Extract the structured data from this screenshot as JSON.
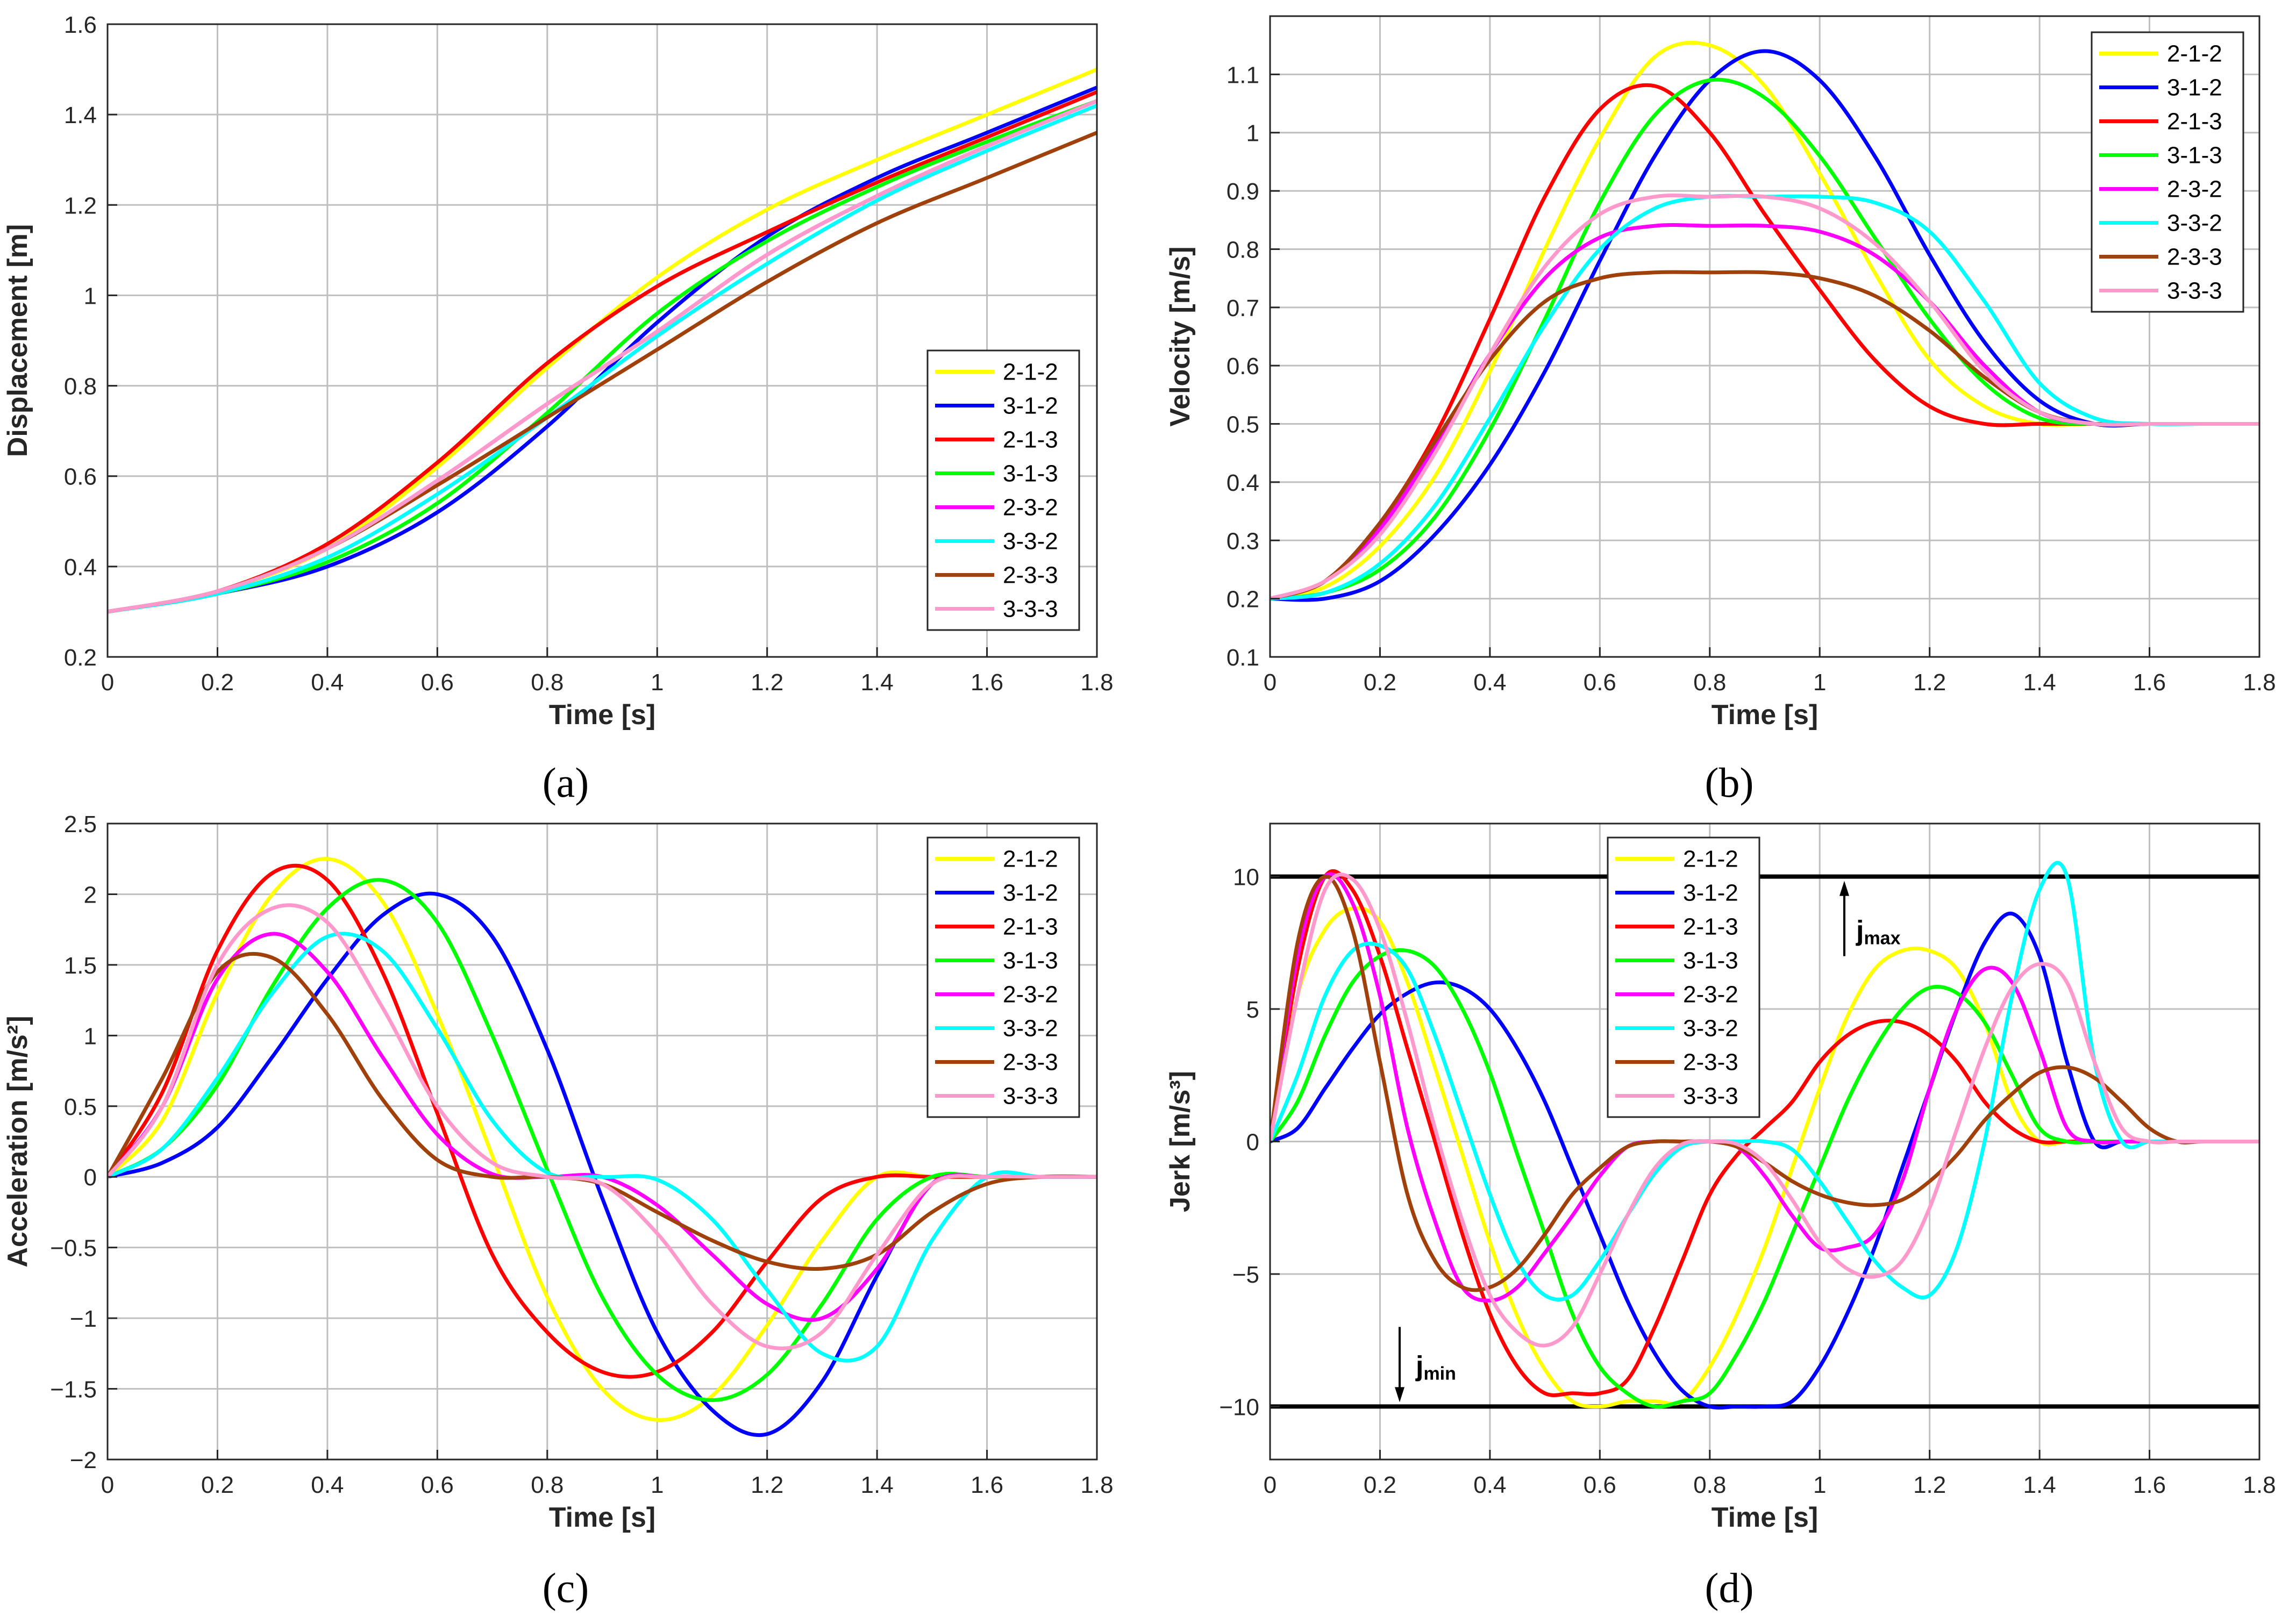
{
  "series_styles": [
    {
      "name": "2-1-2",
      "color": "#ffff00"
    },
    {
      "name": "3-1-2",
      "color": "#0000ff"
    },
    {
      "name": "2-1-3",
      "color": "#ff0000"
    },
    {
      "name": "3-1-3",
      "color": "#00ff00"
    },
    {
      "name": "2-3-2",
      "color": "#ff00ff"
    },
    {
      "name": "3-3-2",
      "color": "#00ffff"
    },
    {
      "name": "2-3-3",
      "color": "#a0400a"
    },
    {
      "name": "3-3-3",
      "color": "#ff99cc"
    }
  ],
  "captions": {
    "a": "(a)",
    "b": "(b)",
    "c": "(c)",
    "d": "(d)"
  },
  "chart_data": [
    {
      "id": "a",
      "type": "line",
      "title": "",
      "xlabel": "Time [s]",
      "ylabel": "Displacement [m]",
      "xlim": [
        0,
        1.8
      ],
      "ylim": [
        0.2,
        1.6
      ],
      "xticks": [
        0,
        0.2,
        0.4,
        0.6,
        0.8,
        1,
        1.2,
        1.4,
        1.6,
        1.8
      ],
      "xticklabels": [
        "0",
        "0.2",
        "0.4",
        "0.6",
        "0.8",
        "1",
        "1.2",
        "1.4",
        "1.6",
        "1.8"
      ],
      "yticks": [
        0.2,
        0.4,
        0.6,
        0.8,
        1,
        1.2,
        1.4,
        1.6
      ],
      "yticklabels": [
        "0.2",
        "0.4",
        "0.6",
        "0.8",
        "1",
        "1.2",
        "1.4",
        "1.6"
      ],
      "grid": true,
      "legend": "right-center",
      "x": [
        0,
        0.2,
        0.4,
        0.6,
        0.8,
        1,
        1.2,
        1.4,
        1.6,
        1.8
      ],
      "series": [
        {
          "name": "2-1-2",
          "values": [
            0.3,
            0.345,
            0.44,
            0.62,
            0.84,
            1.04,
            1.19,
            1.3,
            1.4,
            1.5
          ]
        },
        {
          "name": "3-1-2",
          "values": [
            0.3,
            0.34,
            0.4,
            0.52,
            0.71,
            0.94,
            1.13,
            1.26,
            1.36,
            1.46
          ]
        },
        {
          "name": "2-1-3",
          "values": [
            0.3,
            0.345,
            0.45,
            0.63,
            0.85,
            1.02,
            1.14,
            1.25,
            1.35,
            1.45
          ]
        },
        {
          "name": "3-1-3",
          "values": [
            0.3,
            0.34,
            0.41,
            0.54,
            0.74,
            0.96,
            1.12,
            1.24,
            1.34,
            1.43
          ]
        },
        {
          "name": "2-3-2",
          "values": [
            0.3,
            0.345,
            0.44,
            0.59,
            0.76,
            0.92,
            1.09,
            1.22,
            1.33,
            1.43
          ]
        },
        {
          "name": "3-3-2",
          "values": [
            0.3,
            0.34,
            0.42,
            0.56,
            0.73,
            0.91,
            1.07,
            1.21,
            1.32,
            1.42
          ]
        },
        {
          "name": "2-3-3",
          "values": [
            0.3,
            0.345,
            0.44,
            0.58,
            0.73,
            0.88,
            1.03,
            1.16,
            1.26,
            1.36
          ]
        },
        {
          "name": "3-3-3",
          "values": [
            0.3,
            0.345,
            0.44,
            0.59,
            0.76,
            0.92,
            1.09,
            1.22,
            1.33,
            1.43
          ]
        }
      ]
    },
    {
      "id": "b",
      "type": "line",
      "title": "",
      "xlabel": "Time [s]",
      "ylabel": "Velocity [m/s]",
      "xlim": [
        0,
        1.8
      ],
      "ylim": [
        0.1,
        1.2
      ],
      "xticks": [
        0,
        0.2,
        0.4,
        0.6,
        0.8,
        1,
        1.2,
        1.4,
        1.6,
        1.8
      ],
      "xticklabels": [
        "0",
        "0.2",
        "0.4",
        "0.6",
        "0.8",
        "1",
        "1.2",
        "1.4",
        "1.6",
        "1.8"
      ],
      "yticks": [
        0.1,
        0.2,
        0.3,
        0.4,
        0.5,
        0.6,
        0.7,
        0.8,
        0.9,
        1,
        1.1
      ],
      "yticklabels": [
        "0.1",
        "0.2",
        "0.3",
        "0.4",
        "0.5",
        "0.6",
        "0.7",
        "0.8",
        "0.9",
        "1",
        "1.1"
      ],
      "grid": true,
      "legend": "top-right",
      "x": [
        0,
        0.1,
        0.2,
        0.3,
        0.4,
        0.5,
        0.6,
        0.7,
        0.8,
        0.9,
        1,
        1.1,
        1.2,
        1.3,
        1.4,
        1.5,
        1.6,
        1.7,
        1.8
      ],
      "series": [
        {
          "name": "2-1-2",
          "values": [
            0.2,
            0.22,
            0.29,
            0.41,
            0.59,
            0.8,
            0.99,
            1.13,
            1.15,
            1.08,
            0.93,
            0.76,
            0.61,
            0.53,
            0.5,
            0.5,
            0.5,
            0.5,
            0.5
          ]
        },
        {
          "name": "3-1-2",
          "values": [
            0.2,
            0.2,
            0.23,
            0.31,
            0.43,
            0.59,
            0.78,
            0.96,
            1.09,
            1.14,
            1.09,
            0.96,
            0.79,
            0.64,
            0.54,
            0.5,
            0.5,
            0.5,
            0.5
          ]
        },
        {
          "name": "2-1-3",
          "values": [
            0.2,
            0.23,
            0.33,
            0.48,
            0.68,
            0.89,
            1.04,
            1.08,
            1.0,
            0.86,
            0.73,
            0.61,
            0.53,
            0.5,
            0.5,
            0.5,
            0.5,
            0.5,
            0.5
          ]
        },
        {
          "name": "3-1-3",
          "values": [
            0.2,
            0.21,
            0.25,
            0.34,
            0.49,
            0.68,
            0.88,
            1.03,
            1.09,
            1.06,
            0.96,
            0.82,
            0.68,
            0.57,
            0.51,
            0.5,
            0.5,
            0.5,
            0.5
          ]
        },
        {
          "name": "2-3-2",
          "values": [
            0.2,
            0.23,
            0.32,
            0.46,
            0.62,
            0.75,
            0.82,
            0.84,
            0.84,
            0.84,
            0.83,
            0.79,
            0.71,
            0.6,
            0.52,
            0.5,
            0.5,
            0.5,
            0.5
          ]
        },
        {
          "name": "3-3-2",
          "values": [
            0.2,
            0.21,
            0.26,
            0.36,
            0.51,
            0.67,
            0.8,
            0.87,
            0.89,
            0.89,
            0.89,
            0.88,
            0.83,
            0.71,
            0.57,
            0.51,
            0.5,
            0.5,
            0.5
          ]
        },
        {
          "name": "2-3-3",
          "values": [
            0.2,
            0.23,
            0.33,
            0.47,
            0.61,
            0.71,
            0.75,
            0.76,
            0.76,
            0.76,
            0.75,
            0.72,
            0.66,
            0.58,
            0.52,
            0.5,
            0.5,
            0.5,
            0.5
          ]
        },
        {
          "name": "3-3-3",
          "values": [
            0.2,
            0.23,
            0.31,
            0.45,
            0.62,
            0.77,
            0.86,
            0.89,
            0.89,
            0.89,
            0.87,
            0.81,
            0.71,
            0.59,
            0.52,
            0.5,
            0.5,
            0.5,
            0.5
          ]
        }
      ]
    },
    {
      "id": "c",
      "type": "line",
      "title": "",
      "xlabel": "Time [s]",
      "ylabel": "Acceleration [m/s²]",
      "xlim": [
        0,
        1.8
      ],
      "ylim": [
        -2,
        2.5
      ],
      "xticks": [
        0,
        0.2,
        0.4,
        0.6,
        0.8,
        1,
        1.2,
        1.4,
        1.6,
        1.8
      ],
      "xticklabels": [
        "0",
        "0.2",
        "0.4",
        "0.6",
        "0.8",
        "1",
        "1.2",
        "1.4",
        "1.6",
        "1.8"
      ],
      "yticks": [
        -2,
        -1.5,
        -1,
        -0.5,
        0,
        0.5,
        1,
        1.5,
        2,
        2.5
      ],
      "yticklabels": [
        "−2",
        "−1.5",
        "−1",
        "−0.5",
        "0",
        "0.5",
        "1",
        "1.5",
        "2",
        "2.5"
      ],
      "grid": true,
      "legend": "top-right",
      "x": [
        0,
        0.1,
        0.2,
        0.3,
        0.4,
        0.5,
        0.6,
        0.7,
        0.8,
        0.9,
        1,
        1.1,
        1.2,
        1.3,
        1.4,
        1.5,
        1.6,
        1.7,
        1.8
      ],
      "series": [
        {
          "name": "2-1-2",
          "values": [
            0,
            0.4,
            1.3,
            2.0,
            2.25,
            1.95,
            1.15,
            0.15,
            -0.85,
            -1.5,
            -1.72,
            -1.55,
            -1.05,
            -0.45,
            0,
            0,
            0,
            0,
            0
          ]
        },
        {
          "name": "3-1-2",
          "values": [
            0,
            0.1,
            0.35,
            0.85,
            1.4,
            1.85,
            2.0,
            1.7,
            0.9,
            -0.15,
            -1.1,
            -1.65,
            -1.82,
            -1.45,
            -0.7,
            -0.05,
            0,
            0,
            0
          ]
        },
        {
          "name": "2-1-3",
          "values": [
            0,
            0.6,
            1.6,
            2.15,
            2.1,
            1.45,
            0.45,
            -0.55,
            -1.1,
            -1.38,
            -1.38,
            -1.1,
            -0.6,
            -0.15,
            0,
            0,
            0,
            0,
            0
          ]
        },
        {
          "name": "3-1-3",
          "values": [
            0,
            0.2,
            0.65,
            1.35,
            1.9,
            2.1,
            1.8,
            1.0,
            0.05,
            -0.85,
            -1.4,
            -1.58,
            -1.4,
            -0.9,
            -0.3,
            0,
            0,
            0,
            0
          ]
        },
        {
          "name": "2-3-2",
          "values": [
            0,
            0.5,
            1.4,
            1.72,
            1.45,
            0.85,
            0.3,
            0.02,
            0,
            0,
            -0.2,
            -0.55,
            -0.9,
            -1.0,
            -0.65,
            -0.05,
            0,
            0,
            0
          ]
        },
        {
          "name": "3-3-2",
          "values": [
            0,
            0.2,
            0.7,
            1.3,
            1.7,
            1.6,
            1.05,
            0.4,
            0.03,
            0,
            -0.02,
            -0.3,
            -0.8,
            -1.25,
            -1.2,
            -0.45,
            0,
            0,
            0
          ]
        },
        {
          "name": "2-3-3",
          "values": [
            0,
            0.7,
            1.45,
            1.55,
            1.15,
            0.55,
            0.12,
            0,
            0,
            -0.05,
            -0.25,
            -0.45,
            -0.6,
            -0.65,
            -0.55,
            -0.25,
            -0.05,
            0,
            0
          ]
        },
        {
          "name": "3-3-3",
          "values": [
            0,
            0.5,
            1.5,
            1.9,
            1.8,
            1.2,
            0.5,
            0.1,
            0,
            -0.05,
            -0.4,
            -0.9,
            -1.2,
            -1.1,
            -0.55,
            -0.05,
            0,
            0,
            0
          ]
        }
      ]
    },
    {
      "id": "d",
      "type": "line",
      "title": "",
      "xlabel": "Time [s]",
      "ylabel": "Jerk [m/s³]",
      "xlim": [
        0,
        1.8
      ],
      "ylim": [
        -12,
        12
      ],
      "xticks": [
        0,
        0.2,
        0.4,
        0.6,
        0.8,
        1,
        1.2,
        1.4,
        1.6,
        1.8
      ],
      "xticklabels": [
        "0",
        "0.2",
        "0.4",
        "0.6",
        "0.8",
        "1",
        "1.2",
        "1.4",
        "1.6",
        "1.8"
      ],
      "yticks": [
        -10,
        -5,
        0,
        5,
        10
      ],
      "yticklabels": [
        "−10",
        "−5",
        "0",
        "5",
        "10"
      ],
      "grid": true,
      "legend": "top-left-center",
      "limits": [
        {
          "label": "j",
          "sub": "max",
          "value": 10
        },
        {
          "label": "j",
          "sub": "min",
          "value": -10
        }
      ],
      "x": [
        0,
        0.05,
        0.1,
        0.15,
        0.2,
        0.25,
        0.3,
        0.35,
        0.4,
        0.45,
        0.5,
        0.55,
        0.6,
        0.65,
        0.7,
        0.75,
        0.8,
        0.85,
        0.9,
        0.95,
        1,
        1.05,
        1.1,
        1.15,
        1.2,
        1.25,
        1.3,
        1.35,
        1.4,
        1.45,
        1.5,
        1.55,
        1.6,
        1.65,
        1.7,
        1.8
      ],
      "series": [
        {
          "name": "2-1-2",
          "values": [
            0,
            5.5,
            8.0,
            8.8,
            8.3,
            6.0,
            2.8,
            -0.5,
            -3.8,
            -6.6,
            -8.6,
            -9.8,
            -10,
            -9.8,
            -9.8,
            -9.8,
            -8.5,
            -6.5,
            -4.0,
            -1.0,
            2.0,
            4.7,
            6.5,
            7.2,
            7.2,
            6.5,
            4.5,
            1.5,
            0,
            0,
            0,
            0,
            0,
            0,
            0,
            0
          ]
        },
        {
          "name": "3-1-2",
          "values": [
            0,
            0.5,
            2.0,
            3.5,
            4.8,
            5.6,
            6.0,
            5.8,
            5.0,
            3.5,
            1.5,
            -1.0,
            -3.5,
            -6.0,
            -8.0,
            -9.4,
            -10,
            -10,
            -10,
            -9.8,
            -8.5,
            -6.5,
            -4.0,
            -1.0,
            2.0,
            5.0,
            7.5,
            8.6,
            7.0,
            3.0,
            0,
            0,
            0,
            0,
            0,
            0
          ]
        },
        {
          "name": "2-1-3",
          "values": [
            0,
            6.5,
            10,
            9.5,
            7.0,
            3.5,
            0,
            -3.5,
            -6.5,
            -8.5,
            -9.5,
            -9.5,
            -9.5,
            -9.0,
            -7.0,
            -4.5,
            -2.0,
            -0.5,
            0.5,
            1.5,
            3.0,
            4.0,
            4.5,
            4.5,
            4.0,
            3.0,
            1.5,
            0.5,
            0,
            0,
            0,
            0,
            0,
            0,
            0,
            0
          ]
        },
        {
          "name": "3-1-3",
          "values": [
            0,
            1.5,
            4.0,
            6.0,
            7.0,
            7.2,
            6.6,
            5.0,
            2.6,
            -0.5,
            -3.5,
            -6.5,
            -8.5,
            -9.5,
            -10,
            -9.8,
            -9.5,
            -8.0,
            -6.0,
            -3.5,
            -1.0,
            1.5,
            3.5,
            5.0,
            5.8,
            5.6,
            4.5,
            2.5,
            0.5,
            0,
            0,
            0,
            0,
            0,
            0,
            0
          ]
        },
        {
          "name": "2-3-2",
          "values": [
            0,
            7.0,
            10,
            9.0,
            5.5,
            0.5,
            -3.0,
            -5.5,
            -6.0,
            -5.5,
            -4.2,
            -2.8,
            -1.3,
            -0.2,
            0,
            0,
            0,
            -0.2,
            -1.3,
            -2.8,
            -4.0,
            -4.0,
            -3.5,
            -1.5,
            2.0,
            5.0,
            6.5,
            6.0,
            3.5,
            0.5,
            0,
            0,
            0,
            0,
            0,
            0
          ]
        },
        {
          "name": "3-3-2",
          "values": [
            0,
            2.5,
            5.5,
            7.2,
            7.4,
            6.5,
            4.0,
            1.0,
            -2.0,
            -4.5,
            -5.8,
            -5.8,
            -4.5,
            -2.8,
            -1.2,
            -0.2,
            0,
            0,
            0,
            -0.3,
            -1.5,
            -3.0,
            -4.5,
            -5.5,
            -5.8,
            -4.0,
            0,
            5.5,
            9.5,
            10,
            3.0,
            0,
            0,
            0,
            0,
            0
          ]
        },
        {
          "name": "2-3-3",
          "values": [
            0,
            7.5,
            10,
            8.0,
            3.0,
            -2.0,
            -4.5,
            -5.5,
            -5.5,
            -4.8,
            -3.5,
            -2.0,
            -1.0,
            -0.2,
            0,
            0,
            0,
            -0.2,
            -0.8,
            -1.5,
            -2.0,
            -2.3,
            -2.4,
            -2.2,
            -1.5,
            -0.5,
            0.8,
            1.8,
            2.6,
            2.8,
            2.4,
            1.5,
            0.5,
            0,
            0,
            0
          ]
        },
        {
          "name": "3-3-3",
          "values": [
            0,
            5.5,
            9.5,
            9.9,
            8.0,
            4.5,
            0.5,
            -3.0,
            -5.8,
            -7.2,
            -7.7,
            -7.0,
            -5.0,
            -2.8,
            -1.0,
            -0.1,
            0,
            -0.1,
            -0.8,
            -2.2,
            -3.8,
            -4.8,
            -5.1,
            -4.5,
            -2.5,
            0.5,
            3.5,
            5.8,
            6.7,
            6.0,
            3.0,
            0.5,
            0,
            0,
            0,
            0
          ]
        }
      ]
    }
  ]
}
